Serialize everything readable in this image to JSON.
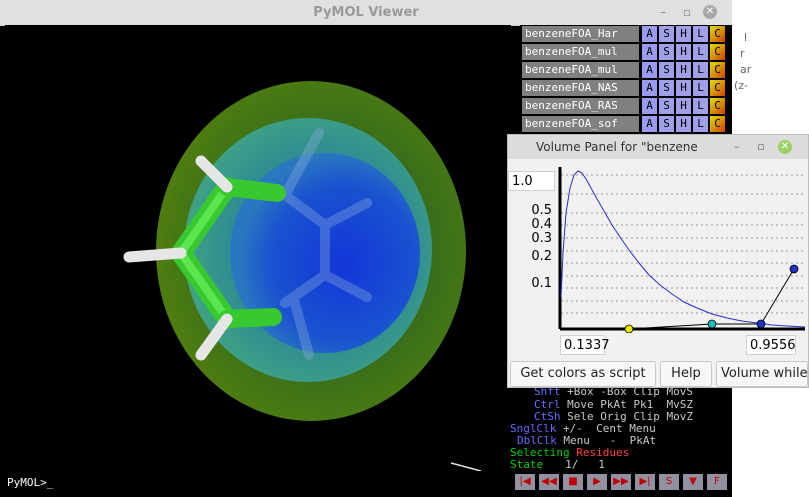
{
  "background_doc": {
    "lines": [
      "l",
      "r",
      "ar",
      "(z-"
    ]
  },
  "pymol": {
    "title": "PyMOL Viewer",
    "prompt": "PyMOL>_",
    "objects": [
      {
        "name": "benzeneFOA_Har",
        "buttons": [
          "A",
          "S",
          "H",
          "L",
          "C"
        ]
      },
      {
        "name": "benzeneFOA_mul",
        "buttons": [
          "A",
          "S",
          "H",
          "L",
          "C"
        ]
      },
      {
        "name": "benzeneFOA_mul",
        "buttons": [
          "A",
          "S",
          "H",
          "L",
          "C"
        ]
      },
      {
        "name": "benzeneFOA_NAS",
        "buttons": [
          "A",
          "S",
          "H",
          "L",
          "C"
        ]
      },
      {
        "name": "benzeneFOA_RAS",
        "buttons": [
          "A",
          "S",
          "H",
          "L",
          "C"
        ]
      },
      {
        "name": "benzeneFOA_sof",
        "buttons": [
          "A",
          "S",
          "H",
          "L",
          "C"
        ]
      }
    ],
    "mouse_help": {
      "row1": {
        "label": "Shft",
        "text": " +Box -Box Clip MovS"
      },
      "row2": {
        "label": "Ctrl",
        "text": " Move PkAt Pk1  MvSZ"
      },
      "row3": {
        "label": "CtSh",
        "text": " Sele Orig Clip MovZ"
      },
      "row4": {
        "label": "SnglClk",
        "text": " +/-  Cent Menu"
      },
      "row5": {
        "label": "DblClk",
        "text": " Menu   -  PkAt"
      },
      "selecting": "Selecting",
      "residues": "Residues",
      "state_label": "State",
      "state_value": "1/   1"
    },
    "transport": [
      "|◀",
      "◀◀",
      "■",
      "▶",
      "▶▶",
      "▶|",
      "S",
      "▼",
      "F"
    ]
  },
  "volume_panel": {
    "title": "Volume Panel for \"benzene",
    "max_field": "1.0",
    "min_value": "0.1337",
    "max_value": "0.9556",
    "y_ticks": [
      "0.5",
      "0.4",
      "0.3",
      "0.2",
      "0.1"
    ],
    "buttons": {
      "colors_script": "Get colors as script",
      "help": "Help",
      "volume_while": "Volume while"
    }
  },
  "colors": {
    "points": [
      "#e8e800",
      "#20c0c0",
      "#2030c0",
      "#2030c0"
    ]
  }
}
